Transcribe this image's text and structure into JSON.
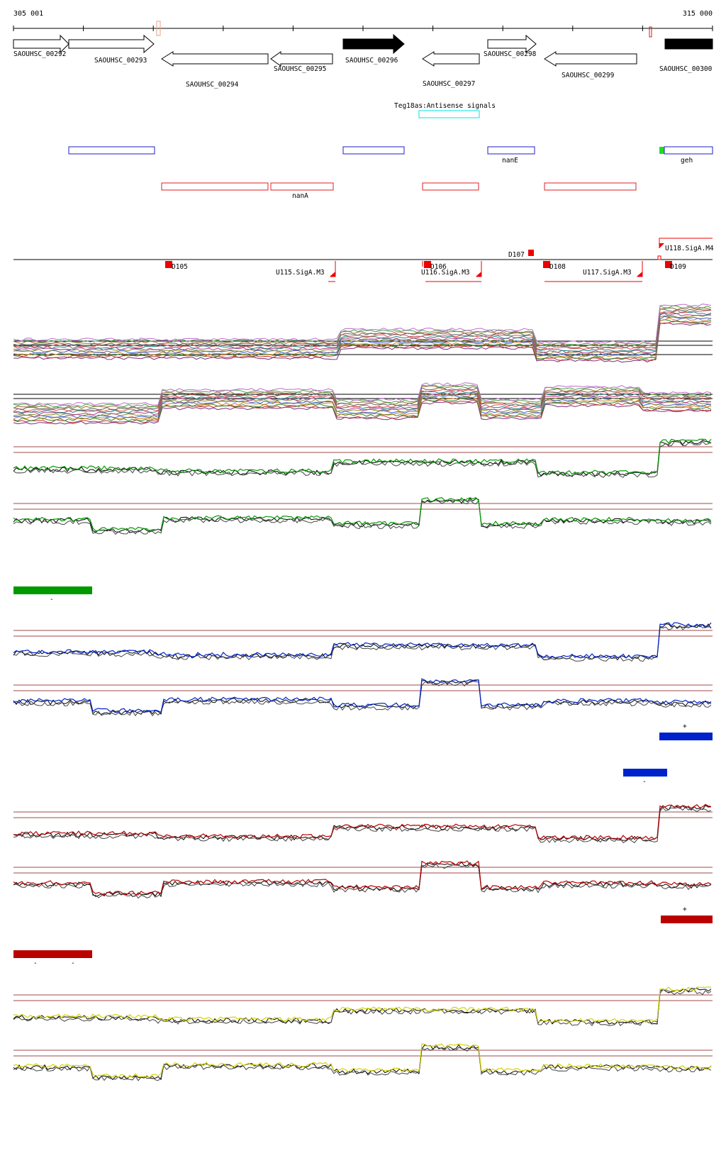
{
  "coords": {
    "start_label": "305 001",
    "end_label": "315 000"
  },
  "genes": [
    {
      "name": "SAOUHSC_00292",
      "strand": "+",
      "filled": false
    },
    {
      "name": "SAOUHSC_00293",
      "strand": "+",
      "filled": false
    },
    {
      "name": "SAOUHSC_00294",
      "strand": "-",
      "filled": false
    },
    {
      "name": "SAOUHSC_00295",
      "strand": "-",
      "filled": false
    },
    {
      "name": "SAOUHSC_00296",
      "strand": "+",
      "filled": true
    },
    {
      "name": "SAOUHSC_00297",
      "strand": "-",
      "filled": false
    },
    {
      "name": "SAOUHSC_00298",
      "strand": "+",
      "filled": false
    },
    {
      "name": "SAOUHSC_00299",
      "strand": "-",
      "filled": false
    },
    {
      "name": "SAOUHSC_00300",
      "strand": "+",
      "filled": true
    }
  ],
  "antisense": {
    "label": "Teg18as:Antisense signals",
    "color": "#00e5e5"
  },
  "operons_plus": {
    "color": "#1f1fc8",
    "labels": [
      "nanE",
      "geh"
    ]
  },
  "operons_minus": {
    "color": "#e02020",
    "labels": [
      "nanA"
    ]
  },
  "segments": {
    "down": [
      "D105",
      "D106",
      "D107",
      "D108",
      "D109"
    ],
    "up": [
      "U115.SigA.M3",
      "U116.SigA.M3",
      "U117.SigA.M3",
      "U118.SigA.M4"
    ],
    "color": "#ee0000"
  },
  "condition_panels": [
    {
      "color": "#009900",
      "bar_labels": [
        "-"
      ]
    },
    {
      "color": "#0022cc",
      "bar_labels": [
        "+",
        "-"
      ]
    },
    {
      "color": "#bb0000",
      "bar_labels": [
        "+",
        "-",
        "-"
      ]
    },
    {
      "color": "#d4d400",
      "bar_labels": []
    }
  ],
  "colors": {
    "threshold_line": "#a04a4a",
    "overview_series": [
      "#7b2a7b",
      "#c03030",
      "#2b8a2b",
      "#d07a20",
      "#3a5fd0",
      "#8a8a20",
      "#b04090",
      "#208080",
      "#e05050",
      "#606060",
      "#9a6a30",
      "#4aa04a",
      "#c06ad0"
    ]
  }
}
